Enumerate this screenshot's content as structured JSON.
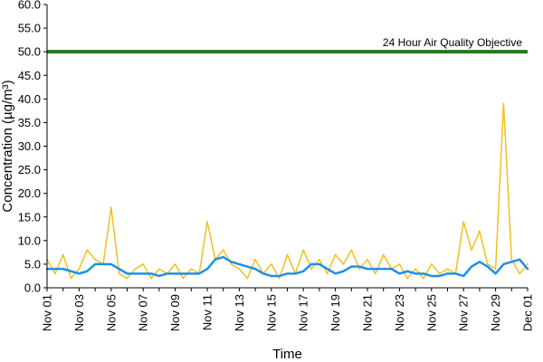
{
  "chart_data": {
    "type": "line",
    "title": "",
    "xlabel": "Time",
    "ylabel": "Concentration (µg/m³)",
    "ylim": [
      0,
      60
    ],
    "y_tick_step": 5,
    "y_tick_decimals": 1,
    "xlim": [
      "2012-11-01",
      "2012-12-01"
    ],
    "x_tick_labels": [
      "Nov 01",
      "Nov 03",
      "Nov 05",
      "Nov 07",
      "Nov 09",
      "Nov 11",
      "Nov 13",
      "Nov 15",
      "Nov 17",
      "Nov 19",
      "Nov 21",
      "Nov 23",
      "Nov 25",
      "Nov 27",
      "Nov 29",
      "Dec 01"
    ],
    "grid": false,
    "legend": "none",
    "reference_line": {
      "label": "24 Hour Air Quality Objective",
      "value": 50,
      "color": "#1e7b1e"
    },
    "series": [
      {
        "style": "hourly",
        "color": "#f2c01d",
        "x": [
          "2012-11-01",
          "2012-11-01T12",
          "2012-11-02",
          "2012-11-02T12",
          "2012-11-03",
          "2012-11-03T12",
          "2012-11-04",
          "2012-11-04T12",
          "2012-11-05",
          "2012-11-05T12",
          "2012-11-06",
          "2012-11-06T12",
          "2012-11-07",
          "2012-11-07T12",
          "2012-11-08",
          "2012-11-08T12",
          "2012-11-09",
          "2012-11-09T12",
          "2012-11-10",
          "2012-11-10T12",
          "2012-11-11",
          "2012-11-11T12",
          "2012-11-12",
          "2012-11-12T12",
          "2012-11-13",
          "2012-11-13T12",
          "2012-11-14",
          "2012-11-14T12",
          "2012-11-15",
          "2012-11-15T12",
          "2012-11-16",
          "2012-11-16T12",
          "2012-11-17",
          "2012-11-17T12",
          "2012-11-18",
          "2012-11-18T12",
          "2012-11-19",
          "2012-11-19T12",
          "2012-11-20",
          "2012-11-20T12",
          "2012-11-21",
          "2012-11-21T12",
          "2012-11-22",
          "2012-11-22T12",
          "2012-11-23",
          "2012-11-23T12",
          "2012-11-24",
          "2012-11-24T12",
          "2012-11-25",
          "2012-11-25T12",
          "2012-11-26",
          "2012-11-26T12",
          "2012-11-27",
          "2012-11-27T12",
          "2012-11-28",
          "2012-11-28T12",
          "2012-11-29",
          "2012-11-29T12",
          "2012-11-30",
          "2012-11-30T12",
          "2012-12-01"
        ],
        "values": [
          6,
          3,
          7,
          2,
          4,
          8,
          6,
          5,
          17,
          3,
          2,
          4,
          5,
          2,
          4,
          3,
          5,
          2,
          4,
          3,
          14,
          6,
          8,
          5,
          4,
          2,
          6,
          3,
          5,
          2,
          7,
          3,
          8,
          4,
          6,
          3,
          7,
          5,
          8,
          4,
          6,
          3,
          7,
          4,
          5,
          2,
          4,
          2,
          5,
          3,
          4,
          3,
          14,
          8,
          12,
          5,
          4,
          39,
          6,
          3,
          5
        ]
      },
      {
        "style": "24-hour running mean",
        "color": "#1e90e6",
        "x": [
          "2012-11-01",
          "2012-11-01T12",
          "2012-11-02",
          "2012-11-02T12",
          "2012-11-03",
          "2012-11-03T12",
          "2012-11-04",
          "2012-11-04T12",
          "2012-11-05",
          "2012-11-05T12",
          "2012-11-06",
          "2012-11-06T12",
          "2012-11-07",
          "2012-11-07T12",
          "2012-11-08",
          "2012-11-08T12",
          "2012-11-09",
          "2012-11-09T12",
          "2012-11-10",
          "2012-11-10T12",
          "2012-11-11",
          "2012-11-11T12",
          "2012-11-12",
          "2012-11-12T12",
          "2012-11-13",
          "2012-11-13T12",
          "2012-11-14",
          "2012-11-14T12",
          "2012-11-15",
          "2012-11-15T12",
          "2012-11-16",
          "2012-11-16T12",
          "2012-11-17",
          "2012-11-17T12",
          "2012-11-18",
          "2012-11-18T12",
          "2012-11-19",
          "2012-11-19T12",
          "2012-11-20",
          "2012-11-20T12",
          "2012-11-21",
          "2012-11-21T12",
          "2012-11-22",
          "2012-11-22T12",
          "2012-11-23",
          "2012-11-23T12",
          "2012-11-24",
          "2012-11-24T12",
          "2012-11-25",
          "2012-11-25T12",
          "2012-11-26",
          "2012-11-26T12",
          "2012-11-27",
          "2012-11-27T12",
          "2012-11-28",
          "2012-11-28T12",
          "2012-11-29",
          "2012-11-29T12",
          "2012-11-30",
          "2012-11-30T12",
          "2012-12-01"
        ],
        "values": [
          4,
          4,
          4,
          3.5,
          3,
          3.5,
          5,
          5,
          5,
          4,
          3,
          3,
          3,
          3,
          2.5,
          3,
          3,
          3,
          3,
          3,
          4,
          6,
          6.5,
          5.5,
          5,
          4.5,
          4,
          3,
          2.5,
          2.5,
          3,
          3,
          3.5,
          5,
          5,
          4,
          3,
          3.5,
          4.5,
          4.5,
          4,
          4,
          4,
          4,
          3,
          3.5,
          3,
          3,
          2.5,
          2.5,
          3,
          3,
          2.5,
          4.5,
          5.5,
          4.5,
          3,
          5,
          5.5,
          6,
          4
        ]
      }
    ]
  }
}
